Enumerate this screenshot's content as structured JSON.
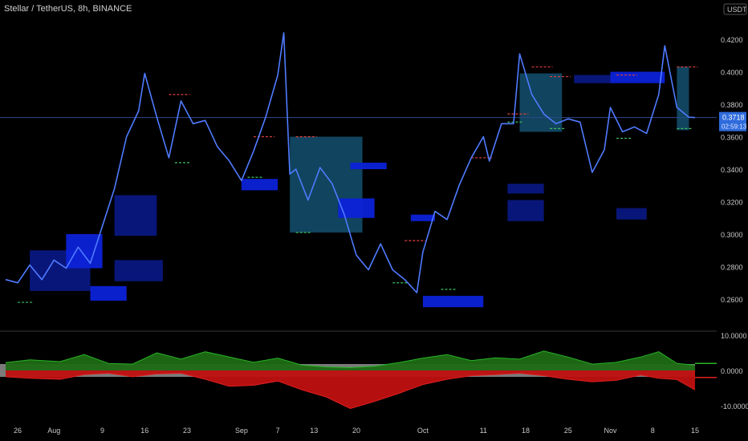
{
  "header": {
    "title": "Stellar / TetherUS, 8h, BINANCE",
    "currency": "USDT"
  },
  "price_badge": {
    "price": "0.3718",
    "countdown": "02:59:13"
  },
  "colors": {
    "background": "#000000",
    "price_line": "#4f7bff",
    "axis_text": "#c8c8c8",
    "last_price_badge": "#2f6bdc",
    "last_price_line": "#2c4a8a",
    "resistance_dash": "#e04040",
    "support_dash": "#40c060",
    "zone_dark": "#0a1780",
    "zone_bright": "#0c22d8",
    "zone_teal": "#14506e",
    "osc_green": "#1d6b14",
    "osc_red": "#c01010",
    "osc_band": "#9a9a9a",
    "osc_green_line": "#27b327",
    "osc_red_line": "#e02020"
  },
  "chart_data": [
    {
      "type": "line",
      "name": "price",
      "ylim": [
        0.245,
        0.43
      ],
      "y_ticks": [
        "0.4200",
        "0.4000",
        "0.3800",
        "0.3600",
        "0.3400",
        "0.3200",
        "0.3000",
        "0.2800",
        "0.2600"
      ],
      "x_ticks": [
        "26",
        "Aug",
        "9",
        "16",
        "23",
        "Sep",
        "7",
        "13",
        "20",
        "Oct",
        "11",
        "18",
        "25",
        "Nov",
        "8",
        "15"
      ],
      "last_price": 0.3718,
      "x_domain": [
        "Jul 24",
        "Nov 15"
      ],
      "series": [
        {
          "values": [
            [
              "Jul 24",
              0.272
            ],
            [
              "Jul 26",
              0.27
            ],
            [
              "Jul 28",
              0.281
            ],
            [
              "Jul 30",
              0.272
            ],
            [
              "Aug 1",
              0.284
            ],
            [
              "Aug 3",
              0.279
            ],
            [
              "Aug 5",
              0.292
            ],
            [
              "Aug 7",
              0.282
            ],
            [
              "Aug 9",
              0.305
            ],
            [
              "Aug 11",
              0.328
            ],
            [
              "Aug 13",
              0.36
            ],
            [
              "Aug 15",
              0.376
            ],
            [
              "Aug 16",
              0.399
            ],
            [
              "Aug 18",
              0.372
            ],
            [
              "Aug 20",
              0.347
            ],
            [
              "Aug 22",
              0.382
            ],
            [
              "Aug 24",
              0.368
            ],
            [
              "Aug 26",
              0.37
            ],
            [
              "Aug 28",
              0.354
            ],
            [
              "Aug 30",
              0.345
            ],
            [
              "Sep 1",
              0.333
            ],
            [
              "Sep 3",
              0.351
            ],
            [
              "Sep 5",
              0.372
            ],
            [
              "Sep 7",
              0.398
            ],
            [
              "Sep 8",
              0.424
            ],
            [
              "Sep 9",
              0.337
            ],
            [
              "Sep 10",
              0.34
            ],
            [
              "Sep 12",
              0.321
            ],
            [
              "Sep 14",
              0.341
            ],
            [
              "Sep 16",
              0.331
            ],
            [
              "Sep 18",
              0.312
            ],
            [
              "Sep 20",
              0.287
            ],
            [
              "Sep 22",
              0.278
            ],
            [
              "Sep 24",
              0.294
            ],
            [
              "Sep 26",
              0.278
            ],
            [
              "Sep 28",
              0.272
            ],
            [
              "Sep 30",
              0.264
            ],
            [
              "Oct 1",
              0.289
            ],
            [
              "Oct 3",
              0.314
            ],
            [
              "Oct 5",
              0.309
            ],
            [
              "Oct 7",
              0.33
            ],
            [
              "Oct 9",
              0.347
            ],
            [
              "Oct 11",
              0.36
            ],
            [
              "Oct 12",
              0.345
            ],
            [
              "Oct 14",
              0.368
            ],
            [
              "Oct 16",
              0.368
            ],
            [
              "Oct 17",
              0.411
            ],
            [
              "Oct 19",
              0.386
            ],
            [
              "Oct 21",
              0.374
            ],
            [
              "Oct 23",
              0.368
            ],
            [
              "Oct 25",
              0.371
            ],
            [
              "Oct 27",
              0.369
            ],
            [
              "Oct 29",
              0.338
            ],
            [
              "Oct 31",
              0.352
            ],
            [
              "Nov 1",
              0.378
            ],
            [
              "Nov 3",
              0.363
            ],
            [
              "Nov 5",
              0.366
            ],
            [
              "Nov 7",
              0.362
            ],
            [
              "Nov 9",
              0.386
            ],
            [
              "Nov 10",
              0.416
            ],
            [
              "Nov 12",
              0.378
            ],
            [
              "Nov 14",
              0.372
            ],
            [
              "Nov 15",
              0.3718
            ]
          ]
        }
      ],
      "resistance_levels": [
        [
          "Aug 20",
          0.386
        ],
        [
          "Sep 3",
          0.36
        ],
        [
          "Sep 10",
          0.36
        ],
        [
          "Sep 28",
          0.296
        ],
        [
          "Oct 9",
          0.347
        ],
        [
          "Oct 15",
          0.374
        ],
        [
          "Oct 19",
          0.403
        ],
        [
          "Oct 22",
          0.397
        ],
        [
          "Nov 2",
          0.398
        ],
        [
          "Nov 12",
          0.403
        ]
      ],
      "support_levels": [
        [
          "Jul 26",
          0.258
        ],
        [
          "Aug 21",
          0.344
        ],
        [
          "Sep 2",
          0.335
        ],
        [
          "Sep 10",
          0.301
        ],
        [
          "Sep 26",
          0.27
        ],
        [
          "Oct 4",
          0.266
        ],
        [
          "Oct 15",
          0.369
        ],
        [
          "Oct 22",
          0.365
        ],
        [
          "Nov 2",
          0.359
        ],
        [
          "Nov 12",
          0.365
        ]
      ],
      "zones": [
        {
          "from": "Sep 9",
          "to": "Sep 21",
          "top": 0.36,
          "bottom": 0.301,
          "style": "teal"
        },
        {
          "from": "Oct 17",
          "to": "Oct 24",
          "top": 0.399,
          "bottom": 0.363,
          "style": "teal"
        },
        {
          "from": "Nov 12",
          "to": "Nov 14",
          "top": 0.403,
          "bottom": 0.364,
          "style": "teal"
        },
        {
          "from": "Jul 28",
          "to": "Aug 7",
          "top": 0.29,
          "bottom": 0.265,
          "style": "dark"
        },
        {
          "from": "Aug 3",
          "to": "Aug 9",
          "top": 0.3,
          "bottom": 0.279,
          "style": "bright"
        },
        {
          "from": "Aug 7",
          "to": "Aug 13",
          "top": 0.268,
          "bottom": 0.259,
          "style": "bright"
        },
        {
          "from": "Aug 11",
          "to": "Aug 18",
          "top": 0.324,
          "bottom": 0.299,
          "style": "dark"
        },
        {
          "from": "Aug 11",
          "to": "Aug 19",
          "top": 0.284,
          "bottom": 0.271,
          "style": "dark"
        },
        {
          "from": "Sep 1",
          "to": "Sep 7",
          "top": 0.334,
          "bottom": 0.327,
          "style": "bright"
        },
        {
          "from": "Sep 17",
          "to": "Sep 23",
          "top": 0.322,
          "bottom": 0.31,
          "style": "bright"
        },
        {
          "from": "Sep 19",
          "to": "Sep 25",
          "top": 0.344,
          "bottom": 0.34,
          "style": "bright"
        },
        {
          "from": "Sep 29",
          "to": "Oct 3",
          "top": 0.312,
          "bottom": 0.308,
          "style": "bright"
        },
        {
          "from": "Oct 1",
          "to": "Oct 11",
          "top": 0.262,
          "bottom": 0.255,
          "style": "bright"
        },
        {
          "from": "Oct 15",
          "to": "Oct 21",
          "top": 0.331,
          "bottom": 0.325,
          "style": "dark"
        },
        {
          "from": "Oct 15",
          "to": "Oct 21",
          "top": 0.321,
          "bottom": 0.308,
          "style": "dark"
        },
        {
          "from": "Oct 26",
          "to": "Nov 1",
          "top": 0.398,
          "bottom": 0.393,
          "style": "dark"
        },
        {
          "from": "Nov 1",
          "to": "Nov 10",
          "top": 0.4,
          "bottom": 0.393,
          "style": "bright"
        },
        {
          "from": "Nov 2",
          "to": "Nov 7",
          "top": 0.316,
          "bottom": 0.309,
          "style": "dark"
        }
      ]
    },
    {
      "type": "area",
      "name": "oscillator",
      "ylim": [
        -11.5,
        11.5
      ],
      "y_ticks": [
        "10.0000",
        "0.0000",
        "-10.0000"
      ],
      "x_domain": [
        "Jul 24",
        "Nov 15"
      ],
      "series": [
        {
          "name": "green",
          "values": [
            [
              "Jul 24",
              2.2
            ],
            [
              "Jul 28",
              3.0
            ],
            [
              "Aug 2",
              2.5
            ],
            [
              "Aug 6",
              4.5
            ],
            [
              "Aug 10",
              2.0
            ],
            [
              "Aug 14",
              1.8
            ],
            [
              "Aug 18",
              5.0
            ],
            [
              "Aug 22",
              3.2
            ],
            [
              "Aug 26",
              5.3
            ],
            [
              "Aug 30",
              3.8
            ],
            [
              "Sep 3",
              2.3
            ],
            [
              "Sep 7",
              3.5
            ],
            [
              "Sep 11",
              1.5
            ],
            [
              "Sep 15",
              1.0
            ],
            [
              "Sep 19",
              0.8
            ],
            [
              "Sep 23",
              1.2
            ],
            [
              "Sep 27",
              2.2
            ],
            [
              "Oct 1",
              3.5
            ],
            [
              "Oct 5",
              4.5
            ],
            [
              "Oct 9",
              2.8
            ],
            [
              "Oct 13",
              3.6
            ],
            [
              "Oct 17",
              3.2
            ],
            [
              "Oct 21",
              5.5
            ],
            [
              "Oct 25",
              3.8
            ],
            [
              "Oct 29",
              1.8
            ],
            [
              "Nov 2",
              2.3
            ],
            [
              "Nov 6",
              3.8
            ],
            [
              "Nov 9",
              5.3
            ],
            [
              "Nov 12",
              2.0
            ],
            [
              "Nov 15",
              1.5
            ]
          ]
        },
        {
          "name": "red",
          "values": [
            [
              "Jul 24",
              -1.8
            ],
            [
              "Jul 28",
              -2.2
            ],
            [
              "Aug 2",
              -2.5
            ],
            [
              "Aug 6",
              -1.2
            ],
            [
              "Aug 10",
              -0.8
            ],
            [
              "Aug 14",
              -1.8
            ],
            [
              "Aug 18",
              -1.0
            ],
            [
              "Aug 22",
              -0.8
            ],
            [
              "Aug 26",
              -2.5
            ],
            [
              "Aug 30",
              -4.5
            ],
            [
              "Sep 3",
              -4.2
            ],
            [
              "Sep 7",
              -3.0
            ],
            [
              "Sep 11",
              -5.5
            ],
            [
              "Sep 15",
              -7.5
            ],
            [
              "Sep 19",
              -10.8
            ],
            [
              "Sep 23",
              -8.8
            ],
            [
              "Sep 27",
              -6.5
            ],
            [
              "Oct 1",
              -4.0
            ],
            [
              "Oct 5",
              -2.5
            ],
            [
              "Oct 9",
              -1.5
            ],
            [
              "Oct 13",
              -1.2
            ],
            [
              "Oct 17",
              -0.8
            ],
            [
              "Oct 21",
              -1.5
            ],
            [
              "Oct 25",
              -2.5
            ],
            [
              "Oct 29",
              -3.2
            ],
            [
              "Nov 2",
              -2.8
            ],
            [
              "Nov 6",
              -1.3
            ],
            [
              "Nov 9",
              -2.2
            ],
            [
              "Nov 12",
              -2.6
            ],
            [
              "Nov 15",
              -5.5
            ]
          ]
        }
      ]
    }
  ]
}
